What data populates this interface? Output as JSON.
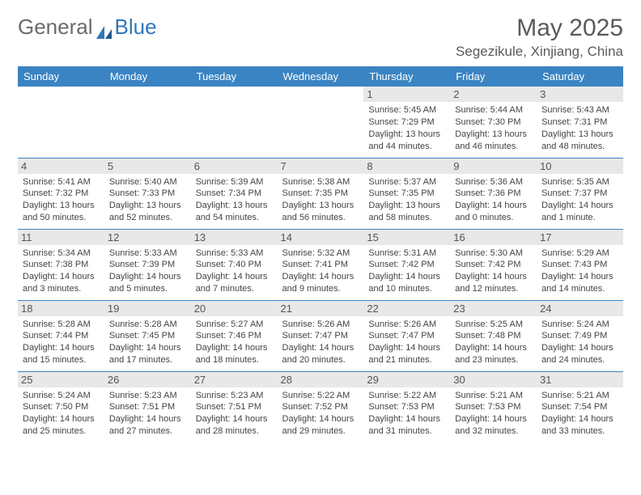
{
  "logo": {
    "text1": "General",
    "text2": "Blue"
  },
  "title": "May 2025",
  "location": "Segezikule, Xinjiang, China",
  "colors": {
    "header_bg": "#3a84c3",
    "header_text": "#ffffff",
    "daynum_bg": "#e8e8e8",
    "border": "#3a84c3",
    "logo_gray": "#6b6b6b",
    "logo_blue": "#2f77b8"
  },
  "weekdays": [
    "Sunday",
    "Monday",
    "Tuesday",
    "Wednesday",
    "Thursday",
    "Friday",
    "Saturday"
  ],
  "weeks": [
    [
      null,
      null,
      null,
      null,
      {
        "n": "1",
        "sr": "5:45 AM",
        "ss": "7:29 PM",
        "dl": "13 hours and 44 minutes."
      },
      {
        "n": "2",
        "sr": "5:44 AM",
        "ss": "7:30 PM",
        "dl": "13 hours and 46 minutes."
      },
      {
        "n": "3",
        "sr": "5:43 AM",
        "ss": "7:31 PM",
        "dl": "13 hours and 48 minutes."
      }
    ],
    [
      {
        "n": "4",
        "sr": "5:41 AM",
        "ss": "7:32 PM",
        "dl": "13 hours and 50 minutes."
      },
      {
        "n": "5",
        "sr": "5:40 AM",
        "ss": "7:33 PM",
        "dl": "13 hours and 52 minutes."
      },
      {
        "n": "6",
        "sr": "5:39 AM",
        "ss": "7:34 PM",
        "dl": "13 hours and 54 minutes."
      },
      {
        "n": "7",
        "sr": "5:38 AM",
        "ss": "7:35 PM",
        "dl": "13 hours and 56 minutes."
      },
      {
        "n": "8",
        "sr": "5:37 AM",
        "ss": "7:35 PM",
        "dl": "13 hours and 58 minutes."
      },
      {
        "n": "9",
        "sr": "5:36 AM",
        "ss": "7:36 PM",
        "dl": "14 hours and 0 minutes."
      },
      {
        "n": "10",
        "sr": "5:35 AM",
        "ss": "7:37 PM",
        "dl": "14 hours and 1 minute."
      }
    ],
    [
      {
        "n": "11",
        "sr": "5:34 AM",
        "ss": "7:38 PM",
        "dl": "14 hours and 3 minutes."
      },
      {
        "n": "12",
        "sr": "5:33 AM",
        "ss": "7:39 PM",
        "dl": "14 hours and 5 minutes."
      },
      {
        "n": "13",
        "sr": "5:33 AM",
        "ss": "7:40 PM",
        "dl": "14 hours and 7 minutes."
      },
      {
        "n": "14",
        "sr": "5:32 AM",
        "ss": "7:41 PM",
        "dl": "14 hours and 9 minutes."
      },
      {
        "n": "15",
        "sr": "5:31 AM",
        "ss": "7:42 PM",
        "dl": "14 hours and 10 minutes."
      },
      {
        "n": "16",
        "sr": "5:30 AM",
        "ss": "7:42 PM",
        "dl": "14 hours and 12 minutes."
      },
      {
        "n": "17",
        "sr": "5:29 AM",
        "ss": "7:43 PM",
        "dl": "14 hours and 14 minutes."
      }
    ],
    [
      {
        "n": "18",
        "sr": "5:28 AM",
        "ss": "7:44 PM",
        "dl": "14 hours and 15 minutes."
      },
      {
        "n": "19",
        "sr": "5:28 AM",
        "ss": "7:45 PM",
        "dl": "14 hours and 17 minutes."
      },
      {
        "n": "20",
        "sr": "5:27 AM",
        "ss": "7:46 PM",
        "dl": "14 hours and 18 minutes."
      },
      {
        "n": "21",
        "sr": "5:26 AM",
        "ss": "7:47 PM",
        "dl": "14 hours and 20 minutes."
      },
      {
        "n": "22",
        "sr": "5:26 AM",
        "ss": "7:47 PM",
        "dl": "14 hours and 21 minutes."
      },
      {
        "n": "23",
        "sr": "5:25 AM",
        "ss": "7:48 PM",
        "dl": "14 hours and 23 minutes."
      },
      {
        "n": "24",
        "sr": "5:24 AM",
        "ss": "7:49 PM",
        "dl": "14 hours and 24 minutes."
      }
    ],
    [
      {
        "n": "25",
        "sr": "5:24 AM",
        "ss": "7:50 PM",
        "dl": "14 hours and 25 minutes."
      },
      {
        "n": "26",
        "sr": "5:23 AM",
        "ss": "7:51 PM",
        "dl": "14 hours and 27 minutes."
      },
      {
        "n": "27",
        "sr": "5:23 AM",
        "ss": "7:51 PM",
        "dl": "14 hours and 28 minutes."
      },
      {
        "n": "28",
        "sr": "5:22 AM",
        "ss": "7:52 PM",
        "dl": "14 hours and 29 minutes."
      },
      {
        "n": "29",
        "sr": "5:22 AM",
        "ss": "7:53 PM",
        "dl": "14 hours and 31 minutes."
      },
      {
        "n": "30",
        "sr": "5:21 AM",
        "ss": "7:53 PM",
        "dl": "14 hours and 32 minutes."
      },
      {
        "n": "31",
        "sr": "5:21 AM",
        "ss": "7:54 PM",
        "dl": "14 hours and 33 minutes."
      }
    ]
  ],
  "labels": {
    "sunrise": "Sunrise: ",
    "sunset": "Sunset: ",
    "daylight": "Daylight: "
  }
}
